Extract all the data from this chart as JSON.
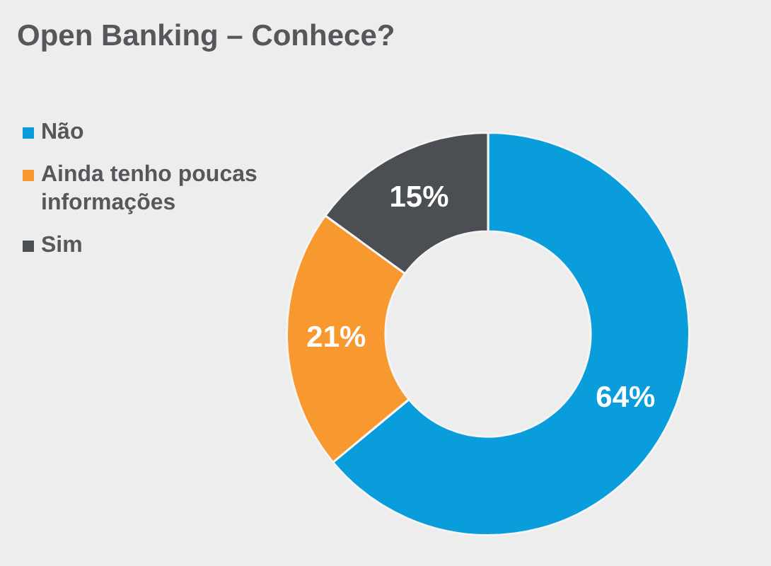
{
  "chart_data": {
    "type": "donut",
    "title": "Open Banking – Conhece?",
    "categories": [
      "Não",
      "Ainda tenho poucas informações",
      "Sim"
    ],
    "values": [
      64,
      21,
      15
    ],
    "colors": [
      "#0a9ddc",
      "#f7992f",
      "#4b4e53"
    ],
    "value_labels": [
      "64%",
      "21%",
      "15%"
    ],
    "legend": "left"
  }
}
